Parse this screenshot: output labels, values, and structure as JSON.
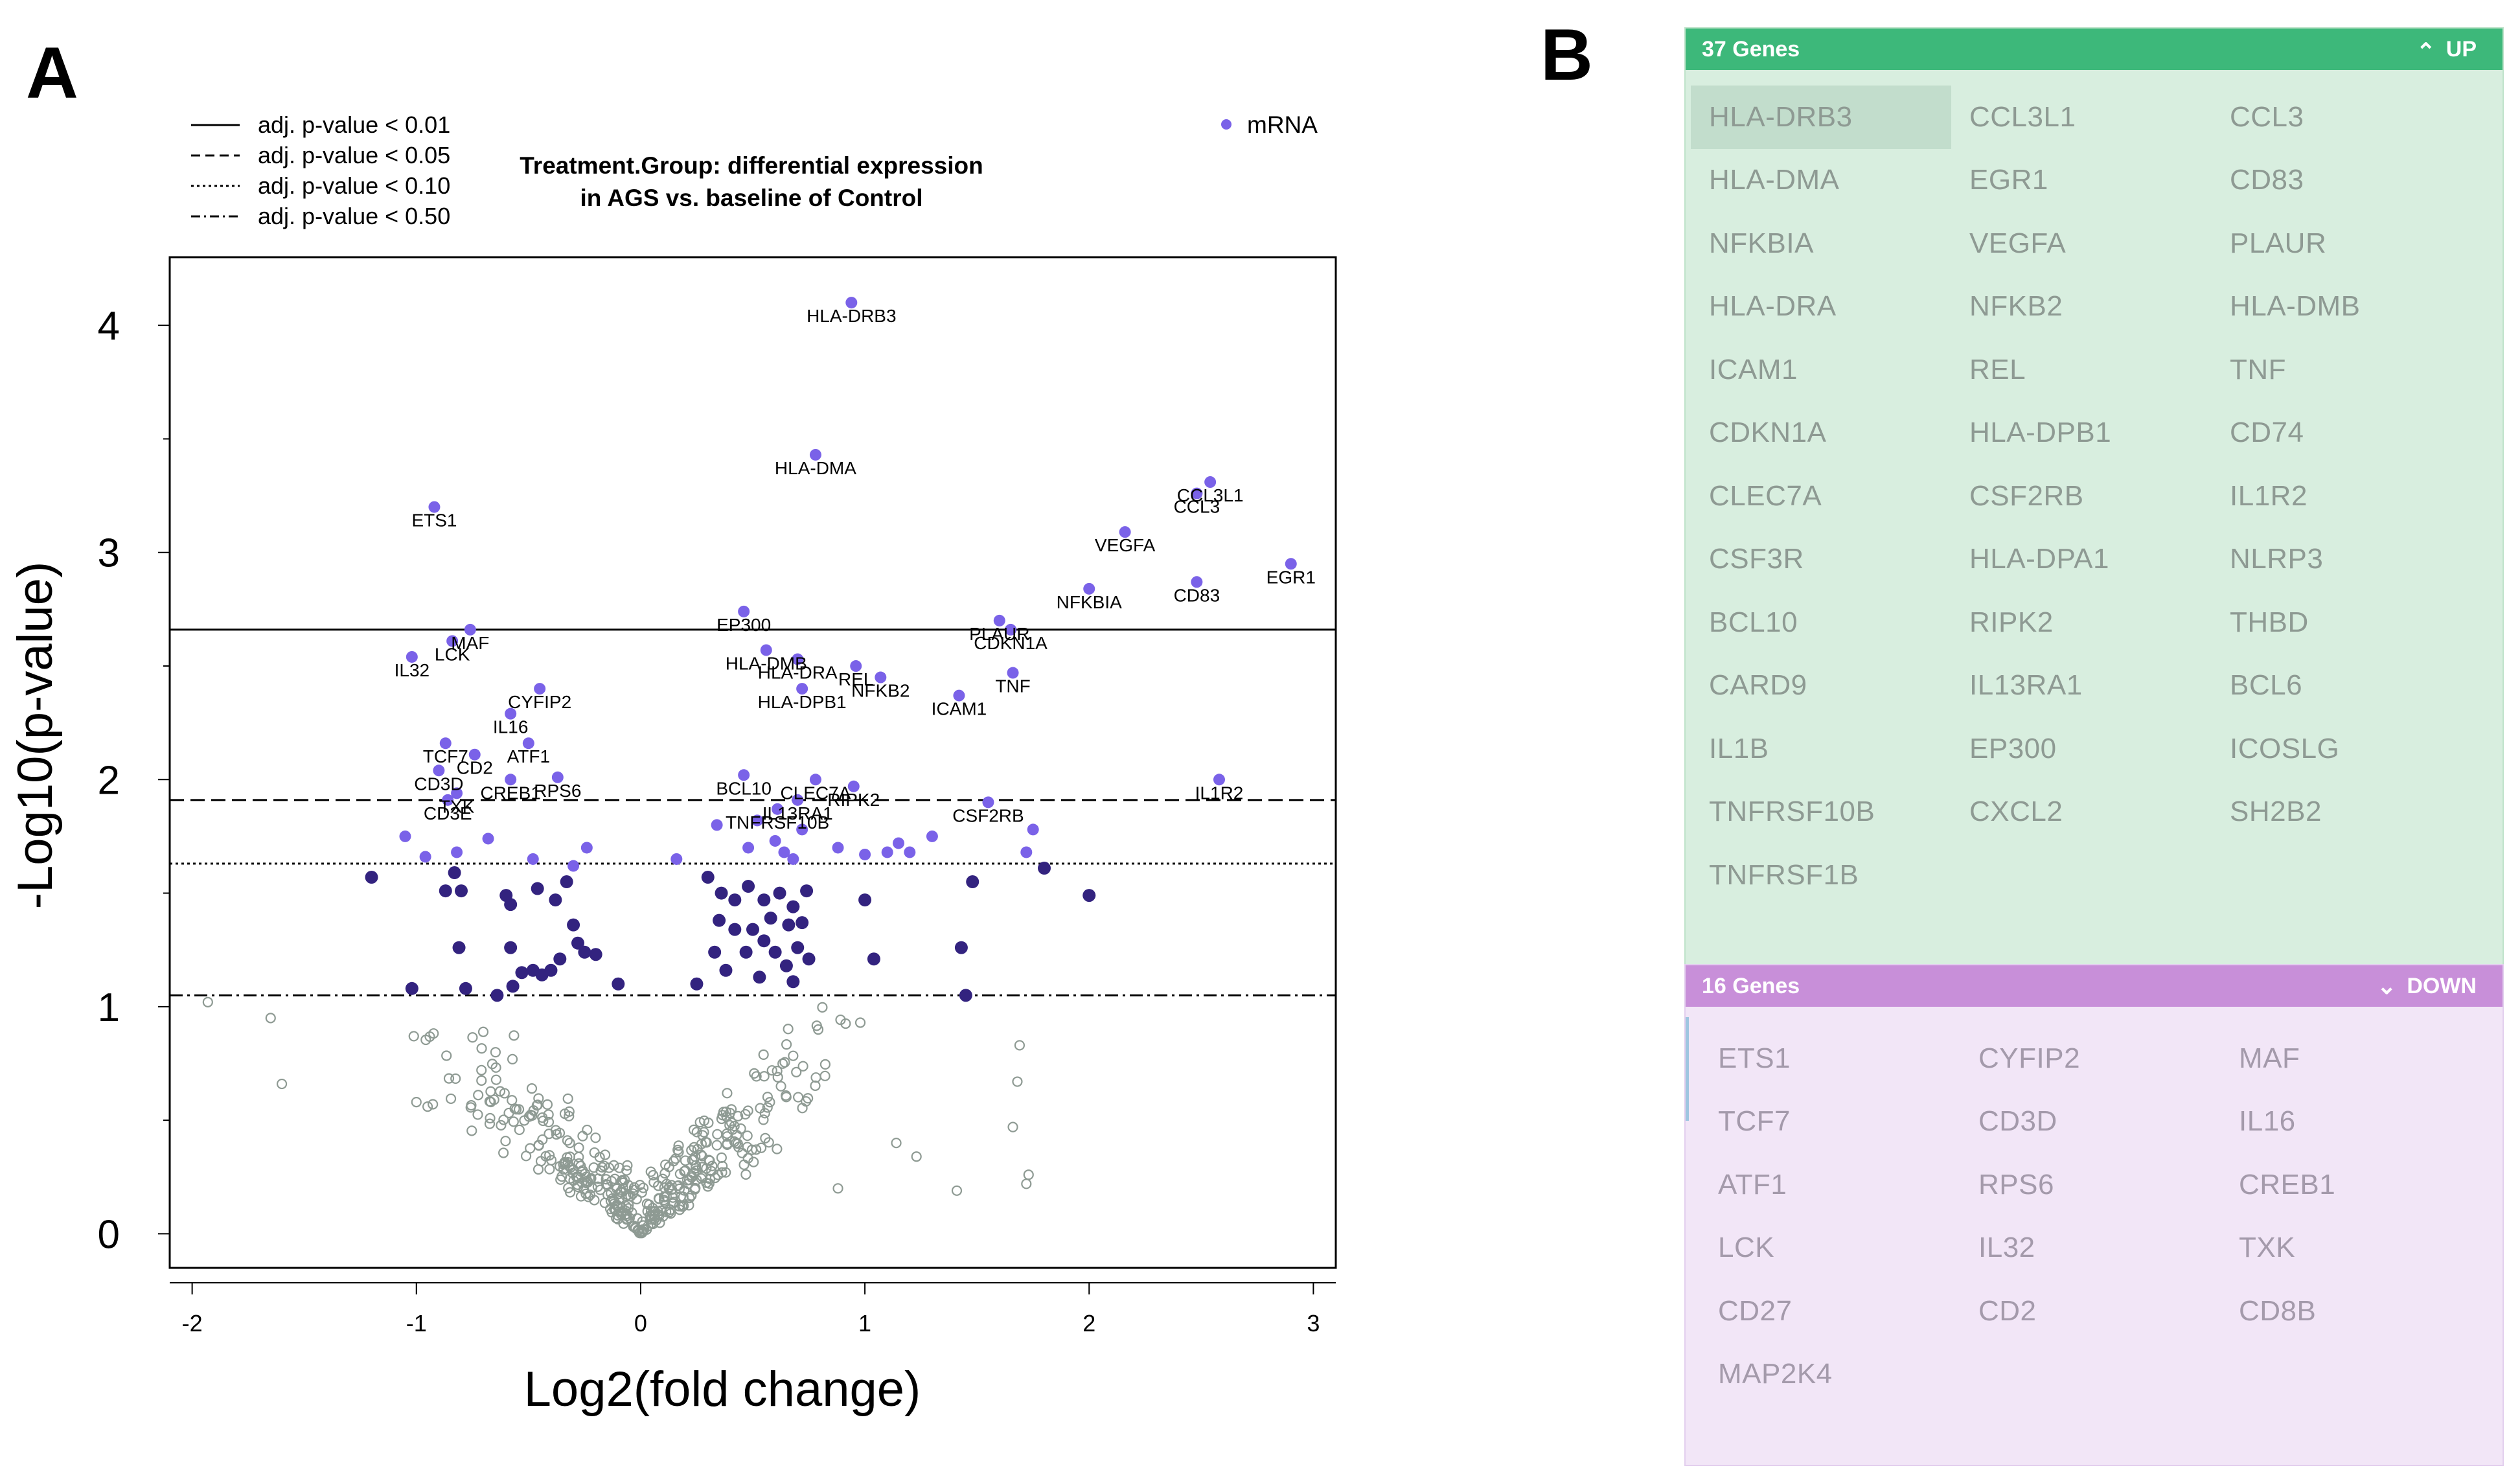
{
  "panels": {
    "a": "A",
    "b": "B"
  },
  "legend": {
    "lines": [
      {
        "label": "adj. p-value < 0.01",
        "dash": "solid"
      },
      {
        "label": "adj. p-value < 0.05",
        "dash": "dashed"
      },
      {
        "label": "adj. p-value < 0.10",
        "dash": "dotted"
      },
      {
        "label": "adj. p-value < 0.50",
        "dash": "dashdot"
      }
    ],
    "marker_label": "mRNA"
  },
  "colors": {
    "sig_light": "#7a62e8",
    "sig_dark": "#33237f",
    "nonsig": "#8e9a93",
    "up_header": "#3db87a",
    "up_body": "#d8eedf",
    "down_header": "#c88fd9",
    "down_body": "#f2e6f7"
  },
  "chart_data": {
    "type": "scatter",
    "title": "Treatment.Group: differential expression in AGS vs. baseline of Control",
    "title_lines": [
      "Treatment.Group: differential expression",
      "in AGS vs. baseline of Control"
    ],
    "xlabel": "Log2(fold change)",
    "ylabel": "-Log10(p-value)",
    "xlim": [
      -2.1,
      3.1
    ],
    "ylim": [
      -0.15,
      4.3
    ],
    "xticks": [
      -2,
      -1,
      0,
      1,
      2,
      3
    ],
    "yticks": [
      0,
      1,
      2,
      3,
      4
    ],
    "xtick_labels": [
      "-2",
      "-1",
      "0",
      "1",
      "2",
      "3"
    ],
    "ytick_labels": [
      "0",
      "1",
      "2",
      "3",
      "4"
    ],
    "thresholds": [
      {
        "label": "adj. p-value < 0.01",
        "y": 2.66,
        "dash": "solid"
      },
      {
        "label": "adj. p-value < 0.05",
        "y": 1.91,
        "dash": "dashed"
      },
      {
        "label": "adj. p-value < 0.10",
        "y": 1.63,
        "dash": "dotted"
      },
      {
        "label": "adj. p-value < 0.50",
        "y": 1.05,
        "dash": "dashdot"
      }
    ],
    "labeled_points": [
      {
        "gene": "HLA-DRB3",
        "x": 0.94,
        "y": 4.1
      },
      {
        "gene": "HLA-DMA",
        "x": 0.78,
        "y": 3.43
      },
      {
        "gene": "ETS1",
        "x": -0.92,
        "y": 3.2
      },
      {
        "gene": "CCL3L1",
        "x": 2.54,
        "y": 3.31
      },
      {
        "gene": "CCL3",
        "x": 2.48,
        "y": 3.26
      },
      {
        "gene": "VEGFA",
        "x": 2.16,
        "y": 3.09
      },
      {
        "gene": "EGR1",
        "x": 2.9,
        "y": 2.95
      },
      {
        "gene": "CD83",
        "x": 2.48,
        "y": 2.87
      },
      {
        "gene": "NFKBIA",
        "x": 2.0,
        "y": 2.84
      },
      {
        "gene": "EP300",
        "x": 0.46,
        "y": 2.74
      },
      {
        "gene": "MAF",
        "x": -0.76,
        "y": 2.66
      },
      {
        "gene": "PLAUR",
        "x": 1.6,
        "y": 2.7
      },
      {
        "gene": "CDKN1A",
        "x": 1.65,
        "y": 2.66
      },
      {
        "gene": "LCK",
        "x": -0.84,
        "y": 2.61
      },
      {
        "gene": "IL32",
        "x": -1.02,
        "y": 2.54
      },
      {
        "gene": "HLA-DMB",
        "x": 0.56,
        "y": 2.57
      },
      {
        "gene": "HLA-DRA",
        "x": 0.7,
        "y": 2.53
      },
      {
        "gene": "REL",
        "x": 0.96,
        "y": 2.5
      },
      {
        "gene": "NFKB2",
        "x": 1.07,
        "y": 2.45
      },
      {
        "gene": "TNF",
        "x": 1.66,
        "y": 2.47
      },
      {
        "gene": "HLA-DPB1",
        "x": 0.72,
        "y": 2.4
      },
      {
        "gene": "CYFIP2",
        "x": -0.45,
        "y": 2.4
      },
      {
        "gene": "ICAM1",
        "x": 1.42,
        "y": 2.37
      },
      {
        "gene": "IL16",
        "x": -0.58,
        "y": 2.29
      },
      {
        "gene": "TCF7",
        "x": -0.87,
        "y": 2.16
      },
      {
        "gene": "ATF1",
        "x": -0.5,
        "y": 2.16
      },
      {
        "gene": "CD2",
        "x": -0.74,
        "y": 2.11
      },
      {
        "gene": "CD3D",
        "x": -0.9,
        "y": 2.04
      },
      {
        "gene": "CREB1",
        "x": -0.58,
        "y": 2.0
      },
      {
        "gene": "RPS6",
        "x": -0.37,
        "y": 2.01
      },
      {
        "gene": "BCL10",
        "x": 0.46,
        "y": 2.02
      },
      {
        "gene": "CLEC7A",
        "x": 0.78,
        "y": 2.0
      },
      {
        "gene": "RIPK2",
        "x": 0.95,
        "y": 1.97
      },
      {
        "gene": "IL1R2",
        "x": 2.58,
        "y": 2.0
      },
      {
        "gene": "TXK",
        "x": -0.82,
        "y": 1.94
      },
      {
        "gene": "CD3E",
        "x": -0.86,
        "y": 1.91
      },
      {
        "gene": "IL13RA1",
        "x": 0.7,
        "y": 1.91
      },
      {
        "gene": "CSF2RB",
        "x": 1.55,
        "y": 1.9
      },
      {
        "gene": "TNFRSF10B",
        "x": 0.61,
        "y": 1.87
      }
    ],
    "label_display": [
      "HLA-DRB3",
      "HLA-DMA",
      "ETS1",
      "CCL3L1",
      "CCL3",
      "VEGFA",
      "EGR1",
      "CD83",
      "NFKBIA",
      "EP300",
      "MAF",
      "PLAUR",
      "CDKN1A",
      "LCK",
      "IL32",
      "HLA-DMB",
      "HLA-DRA",
      "REL",
      "NFKB2",
      "TNF",
      "HLA-DPB1",
      "CYFIP2",
      "ICAM1",
      "IL16",
      "TCF7",
      "ATF1",
      "CD2",
      "CD3D",
      "CREB1",
      "RPS6",
      "BCL10",
      "CLEC7A",
      "RIPK2",
      "IL1R2",
      "TXK",
      "CD3E",
      "IL13RA1",
      "CSF2RB",
      "TNFRSF10B"
    ],
    "light_points": [
      [
        -1.05,
        1.75
      ],
      [
        -0.96,
        1.66
      ],
      [
        -0.82,
        1.68
      ],
      [
        -0.68,
        1.74
      ],
      [
        -0.48,
        1.65
      ],
      [
        -0.3,
        1.62
      ],
      [
        -0.24,
        1.7
      ],
      [
        0.16,
        1.65
      ],
      [
        0.48,
        1.7
      ],
      [
        0.6,
        1.73
      ],
      [
        0.64,
        1.68
      ],
      [
        0.68,
        1.65
      ],
      [
        0.72,
        1.78
      ],
      [
        0.88,
        1.7
      ],
      [
        1.0,
        1.67
      ],
      [
        1.1,
        1.68
      ],
      [
        1.15,
        1.72
      ],
      [
        1.2,
        1.68
      ],
      [
        1.3,
        1.75
      ],
      [
        1.75,
        1.78
      ],
      [
        1.72,
        1.68
      ],
      [
        0.34,
        1.8
      ],
      [
        0.52,
        1.82
      ]
    ],
    "dark_points": [
      [
        -1.2,
        1.57
      ],
      [
        -0.87,
        1.51
      ],
      [
        -0.83,
        1.59
      ],
      [
        -0.8,
        1.51
      ],
      [
        -0.6,
        1.49
      ],
      [
        -0.58,
        1.45
      ],
      [
        -0.46,
        1.52
      ],
      [
        -0.38,
        1.47
      ],
      [
        -0.33,
        1.55
      ],
      [
        -0.3,
        1.36
      ],
      [
        -0.28,
        1.28
      ],
      [
        -0.25,
        1.24
      ],
      [
        -0.2,
        1.23
      ],
      [
        -0.1,
        1.1
      ],
      [
        -0.81,
        1.26
      ],
      [
        -0.58,
        1.26
      ],
      [
        -0.53,
        1.15
      ],
      [
        -0.48,
        1.16
      ],
      [
        -0.44,
        1.14
      ],
      [
        -0.4,
        1.16
      ],
      [
        -0.36,
        1.21
      ],
      [
        -0.57,
        1.09
      ],
      [
        -0.64,
        1.05
      ],
      [
        -0.78,
        1.08
      ],
      [
        -1.02,
        1.08
      ],
      [
        0.3,
        1.57
      ],
      [
        0.36,
        1.5
      ],
      [
        0.42,
        1.47
      ],
      [
        0.48,
        1.53
      ],
      [
        0.55,
        1.47
      ],
      [
        0.62,
        1.5
      ],
      [
        0.68,
        1.44
      ],
      [
        0.74,
        1.51
      ],
      [
        0.35,
        1.38
      ],
      [
        0.42,
        1.34
      ],
      [
        0.5,
        1.34
      ],
      [
        0.58,
        1.39
      ],
      [
        0.66,
        1.36
      ],
      [
        0.72,
        1.37
      ],
      [
        0.55,
        1.29
      ],
      [
        0.6,
        1.24
      ],
      [
        0.7,
        1.26
      ],
      [
        0.75,
        1.21
      ],
      [
        0.65,
        1.18
      ],
      [
        0.47,
        1.24
      ],
      [
        0.38,
        1.16
      ],
      [
        0.33,
        1.24
      ],
      [
        0.53,
        1.13
      ],
      [
        0.68,
        1.11
      ],
      [
        0.25,
        1.1
      ],
      [
        1.0,
        1.47
      ],
      [
        1.04,
        1.21
      ],
      [
        1.43,
        1.26
      ],
      [
        1.48,
        1.55
      ],
      [
        1.45,
        1.05
      ],
      [
        1.8,
        1.61
      ],
      [
        2.0,
        1.49
      ]
    ],
    "nonsig_seed": 7,
    "nonsig_count": 420
  },
  "gene_lists": {
    "up": {
      "count_label": "37 Genes",
      "direction_label": "UP",
      "genes": [
        "HLA-DRB3",
        "CCL3L1",
        "CCL3",
        "HLA-DMA",
        "EGR1",
        "CD83",
        "NFKBIA",
        "VEGFA",
        "PLAUR",
        "HLA-DRA",
        "NFKB2",
        "HLA-DMB",
        "ICAM1",
        "REL",
        "TNF",
        "CDKN1A",
        "HLA-DPB1",
        "CD74",
        "CLEC7A",
        "CSF2RB",
        "IL1R2",
        "CSF3R",
        "HLA-DPA1",
        "NLRP3",
        "BCL10",
        "RIPK2",
        "THBD",
        "CARD9",
        "IL13RA1",
        "BCL6",
        "IL1B",
        "EP300",
        "ICOSLG",
        "TNFRSF10B",
        "CXCL2",
        "SH2B2",
        "TNFRSF1B"
      ]
    },
    "down": {
      "count_label": "16 Genes",
      "direction_label": "DOWN",
      "genes": [
        "ETS1",
        "CYFIP2",
        "MAF",
        "TCF7",
        "CD3D",
        "IL16",
        "ATF1",
        "RPS6",
        "CREB1",
        "LCK",
        "IL32",
        "TXK",
        "CD27",
        "CD2",
        "CD8B",
        "MAP2K4"
      ]
    }
  }
}
